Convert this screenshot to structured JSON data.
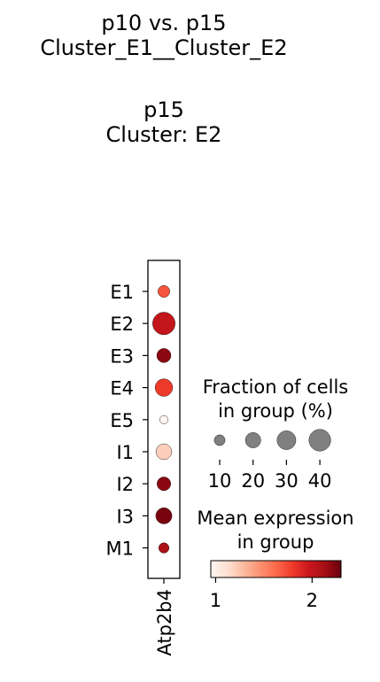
{
  "title": "p10 vs. p15\nCluster_E1__Cluster_E2",
  "subtitle": "p15\nCluster: E2",
  "chart_data": {
    "type": "dotplot",
    "genes": [
      "Atp2b4"
    ],
    "groups": [
      "E1",
      "E2",
      "E3",
      "E4",
      "E5",
      "I1",
      "I2",
      "I3",
      "M1"
    ],
    "fraction_pct": [
      12,
      43,
      17,
      26,
      6,
      21,
      16,
      22,
      9
    ],
    "mean_expression": [
      1.7,
      2.0,
      2.2,
      1.8,
      0.95,
      1.2,
      2.2,
      2.25,
      2.1
    ],
    "size_legend": {
      "title": "Fraction of cells\nin group (%)",
      "values": [
        10,
        20,
        30,
        40
      ],
      "labels": [
        "10",
        "20",
        "30",
        "40"
      ]
    },
    "color_legend": {
      "title": "Mean expression\nin group",
      "range": [
        0.95,
        2.3
      ],
      "ticks": [
        1,
        2
      ],
      "tick_labels": [
        "1",
        "2"
      ],
      "colormap": "Reds"
    }
  }
}
